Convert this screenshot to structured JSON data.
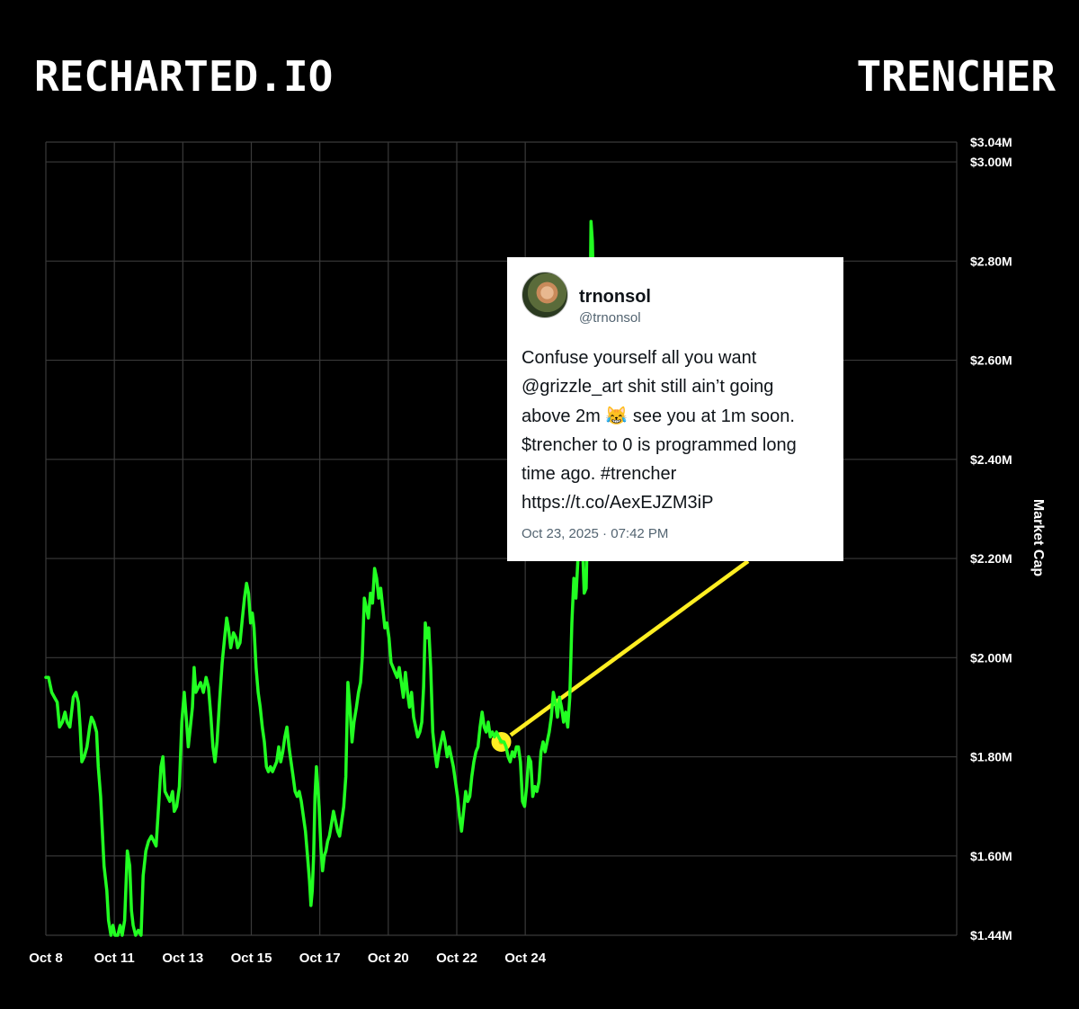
{
  "header": {
    "brand_left": "RECHARTED.IO",
    "brand_right": "TRENCHER"
  },
  "tweet": {
    "name": "trnonsol",
    "handle": "@trnonsol",
    "text": "Confuse yourself all you want @grizzle_art shit still ain’t going above 2m 😹 see you at 1m soon. $trencher to 0 is programmed long time ago. #trencher https://t.co/AexEJZM3iP",
    "timestamp": "Oct 23, 2025 · 07:42 PM",
    "avatar_icon": "avatar-icon"
  },
  "colors": {
    "background": "#000000",
    "line": "#22ff22",
    "grid": "#3a3a3a",
    "annotation": "#ffee22"
  },
  "chart_data": {
    "type": "line",
    "ylabel": "Market Cap",
    "ylim": [
      1.44,
      3.04
    ],
    "xlim": [
      0,
      26.6
    ],
    "grid": true,
    "y_ticks": [
      {
        "value": 3.04,
        "label": "$3.04M"
      },
      {
        "value": 3.0,
        "label": "$3.00M"
      },
      {
        "value": 2.8,
        "label": "$2.80M"
      },
      {
        "value": 2.6,
        "label": "$2.60M"
      },
      {
        "value": 2.4,
        "label": "$2.40M"
      },
      {
        "value": 2.2,
        "label": "$2.20M"
      },
      {
        "value": 2.0,
        "label": "$2.00M"
      },
      {
        "value": 1.8,
        "label": "$1.80M"
      },
      {
        "value": 1.6,
        "label": "$1.60M"
      },
      {
        "value": 1.44,
        "label": "$1.44M"
      }
    ],
    "x_ticks": [
      {
        "value": 0,
        "label": "Oct 8"
      },
      {
        "value": 2,
        "label": "Oct 11"
      },
      {
        "value": 4,
        "label": "Oct 13"
      },
      {
        "value": 6,
        "label": "Oct 15"
      },
      {
        "value": 8,
        "label": "Oct 17"
      },
      {
        "value": 10,
        "label": "Oct 20"
      },
      {
        "value": 12,
        "label": "Oct 22"
      },
      {
        "value": 14,
        "label": "Oct 24"
      }
    ],
    "annotation": {
      "x": 13.3,
      "y": 1.83,
      "label": "tweet"
    },
    "series": [
      {
        "points": [
          [
            0.0,
            1.96
          ],
          [
            0.08,
            1.96
          ],
          [
            0.17,
            1.93
          ],
          [
            0.25,
            1.92
          ],
          [
            0.33,
            1.91
          ],
          [
            0.4,
            1.86
          ],
          [
            0.48,
            1.87
          ],
          [
            0.56,
            1.89
          ],
          [
            0.62,
            1.87
          ],
          [
            0.7,
            1.86
          ],
          [
            0.8,
            1.92
          ],
          [
            0.88,
            1.93
          ],
          [
            0.95,
            1.91
          ],
          [
            1.0,
            1.86
          ],
          [
            1.05,
            1.79
          ],
          [
            1.12,
            1.8
          ],
          [
            1.2,
            1.82
          ],
          [
            1.28,
            1.86
          ],
          [
            1.33,
            1.88
          ],
          [
            1.4,
            1.87
          ],
          [
            1.48,
            1.85
          ],
          [
            1.53,
            1.78
          ],
          [
            1.6,
            1.72
          ],
          [
            1.65,
            1.65
          ],
          [
            1.7,
            1.58
          ],
          [
            1.78,
            1.53
          ],
          [
            1.83,
            1.47
          ],
          [
            1.9,
            1.44
          ],
          [
            1.96,
            1.46
          ],
          [
            2.02,
            1.44
          ],
          [
            2.1,
            1.44
          ],
          [
            2.17,
            1.46
          ],
          [
            2.23,
            1.44
          ],
          [
            2.3,
            1.47
          ],
          [
            2.38,
            1.61
          ],
          [
            2.45,
            1.58
          ],
          [
            2.5,
            1.49
          ],
          [
            2.55,
            1.46
          ],
          [
            2.62,
            1.44
          ],
          [
            2.7,
            1.45
          ],
          [
            2.78,
            1.44
          ],
          [
            2.84,
            1.56
          ],
          [
            2.92,
            1.61
          ],
          [
            3.0,
            1.63
          ],
          [
            3.08,
            1.64
          ],
          [
            3.15,
            1.63
          ],
          [
            3.22,
            1.62
          ],
          [
            3.3,
            1.71
          ],
          [
            3.36,
            1.78
          ],
          [
            3.42,
            1.8
          ],
          [
            3.48,
            1.73
          ],
          [
            3.55,
            1.72
          ],
          [
            3.62,
            1.71
          ],
          [
            3.7,
            1.73
          ],
          [
            3.75,
            1.69
          ],
          [
            3.82,
            1.7
          ],
          [
            3.9,
            1.74
          ],
          [
            3.97,
            1.87
          ],
          [
            4.04,
            1.93
          ],
          [
            4.1,
            1.88
          ],
          [
            4.16,
            1.82
          ],
          [
            4.22,
            1.86
          ],
          [
            4.28,
            1.9
          ],
          [
            4.33,
            1.98
          ],
          [
            4.38,
            1.93
          ],
          [
            4.45,
            1.94
          ],
          [
            4.52,
            1.95
          ],
          [
            4.6,
            1.93
          ],
          [
            4.68,
            1.96
          ],
          [
            4.75,
            1.94
          ],
          [
            4.82,
            1.88
          ],
          [
            4.88,
            1.82
          ],
          [
            4.94,
            1.79
          ],
          [
            5.0,
            1.83
          ],
          [
            5.07,
            1.91
          ],
          [
            5.15,
            1.99
          ],
          [
            5.22,
            2.04
          ],
          [
            5.28,
            2.08
          ],
          [
            5.33,
            2.06
          ],
          [
            5.4,
            2.02
          ],
          [
            5.48,
            2.05
          ],
          [
            5.55,
            2.04
          ],
          [
            5.6,
            2.02
          ],
          [
            5.67,
            2.03
          ],
          [
            5.74,
            2.08
          ],
          [
            5.8,
            2.12
          ],
          [
            5.86,
            2.15
          ],
          [
            5.92,
            2.13
          ],
          [
            5.98,
            2.07
          ],
          [
            6.03,
            2.09
          ],
          [
            6.08,
            2.06
          ],
          [
            6.14,
            1.98
          ],
          [
            6.2,
            1.93
          ],
          [
            6.26,
            1.9
          ],
          [
            6.32,
            1.86
          ],
          [
            6.38,
            1.83
          ],
          [
            6.44,
            1.78
          ],
          [
            6.5,
            1.77
          ],
          [
            6.56,
            1.78
          ],
          [
            6.62,
            1.77
          ],
          [
            6.68,
            1.78
          ],
          [
            6.74,
            1.79
          ],
          [
            6.8,
            1.82
          ],
          [
            6.86,
            1.79
          ],
          [
            6.92,
            1.81
          ],
          [
            6.98,
            1.84
          ],
          [
            7.04,
            1.86
          ],
          [
            7.1,
            1.82
          ],
          [
            7.16,
            1.79
          ],
          [
            7.22,
            1.76
          ],
          [
            7.28,
            1.73
          ],
          [
            7.34,
            1.72
          ],
          [
            7.4,
            1.73
          ],
          [
            7.46,
            1.71
          ],
          [
            7.52,
            1.68
          ],
          [
            7.58,
            1.65
          ],
          [
            7.64,
            1.6
          ],
          [
            7.7,
            1.55
          ],
          [
            7.74,
            1.5
          ],
          [
            7.78,
            1.53
          ],
          [
            7.82,
            1.6
          ],
          [
            7.86,
            1.72
          ],
          [
            7.9,
            1.78
          ],
          [
            7.94,
            1.74
          ],
          [
            7.98,
            1.7
          ],
          [
            8.03,
            1.62
          ],
          [
            8.08,
            1.57
          ],
          [
            8.13,
            1.6
          ],
          [
            8.18,
            1.61
          ],
          [
            8.23,
            1.63
          ],
          [
            8.28,
            1.64
          ],
          [
            8.33,
            1.66
          ],
          [
            8.4,
            1.69
          ],
          [
            8.46,
            1.67
          ],
          [
            8.52,
            1.65
          ],
          [
            8.58,
            1.64
          ],
          [
            8.64,
            1.67
          ],
          [
            8.7,
            1.7
          ],
          [
            8.76,
            1.76
          ],
          [
            8.82,
            1.95
          ],
          [
            8.88,
            1.9
          ],
          [
            8.94,
            1.83
          ],
          [
            9.0,
            1.87
          ],
          [
            9.07,
            1.9
          ],
          [
            9.13,
            1.93
          ],
          [
            9.19,
            1.95
          ],
          [
            9.24,
            2.0
          ],
          [
            9.3,
            2.12
          ],
          [
            9.36,
            2.1
          ],
          [
            9.42,
            2.08
          ],
          [
            9.48,
            2.13
          ],
          [
            9.54,
            2.11
          ],
          [
            9.6,
            2.18
          ],
          [
            9.66,
            2.16
          ],
          [
            9.72,
            2.12
          ],
          [
            9.78,
            2.14
          ],
          [
            9.84,
            2.1
          ],
          [
            9.9,
            2.06
          ],
          [
            9.96,
            2.07
          ],
          [
            10.02,
            2.04
          ],
          [
            10.08,
            1.99
          ],
          [
            10.14,
            1.98
          ],
          [
            10.2,
            1.97
          ],
          [
            10.26,
            1.96
          ],
          [
            10.32,
            1.98
          ],
          [
            10.38,
            1.95
          ],
          [
            10.44,
            1.92
          ],
          [
            10.5,
            1.97
          ],
          [
            10.56,
            1.93
          ],
          [
            10.62,
            1.9
          ],
          [
            10.68,
            1.93
          ],
          [
            10.74,
            1.88
          ],
          [
            10.8,
            1.86
          ],
          [
            10.86,
            1.84
          ],
          [
            10.92,
            1.85
          ],
          [
            10.98,
            1.87
          ],
          [
            11.03,
            1.94
          ],
          [
            11.08,
            2.07
          ],
          [
            11.13,
            2.04
          ],
          [
            11.18,
            2.06
          ],
          [
            11.24,
            1.98
          ],
          [
            11.3,
            1.85
          ],
          [
            11.36,
            1.81
          ],
          [
            11.42,
            1.78
          ],
          [
            11.48,
            1.81
          ],
          [
            11.54,
            1.83
          ],
          [
            11.6,
            1.85
          ],
          [
            11.66,
            1.83
          ],
          [
            11.72,
            1.8
          ],
          [
            11.78,
            1.82
          ],
          [
            11.84,
            1.8
          ],
          [
            11.9,
            1.78
          ],
          [
            11.96,
            1.75
          ],
          [
            12.02,
            1.72
          ],
          [
            12.08,
            1.68
          ],
          [
            12.14,
            1.65
          ],
          [
            12.2,
            1.69
          ],
          [
            12.26,
            1.73
          ],
          [
            12.32,
            1.71
          ],
          [
            12.38,
            1.72
          ],
          [
            12.44,
            1.76
          ],
          [
            12.5,
            1.79
          ],
          [
            12.56,
            1.81
          ],
          [
            12.62,
            1.82
          ],
          [
            12.68,
            1.86
          ],
          [
            12.74,
            1.89
          ],
          [
            12.8,
            1.86
          ],
          [
            12.86,
            1.85
          ],
          [
            12.92,
            1.87
          ],
          [
            12.98,
            1.84
          ],
          [
            13.04,
            1.85
          ],
          [
            13.1,
            1.84
          ],
          [
            13.16,
            1.85
          ],
          [
            13.22,
            1.84
          ],
          [
            13.3,
            1.83
          ],
          [
            13.38,
            1.83
          ],
          [
            13.44,
            1.82
          ],
          [
            13.5,
            1.8
          ],
          [
            13.56,
            1.79
          ],
          [
            13.62,
            1.81
          ],
          [
            13.68,
            1.8
          ],
          [
            13.74,
            1.82
          ],
          [
            13.8,
            1.82
          ],
          [
            13.86,
            1.79
          ],
          [
            13.92,
            1.71
          ],
          [
            13.98,
            1.7
          ],
          [
            14.04,
            1.74
          ],
          [
            14.1,
            1.8
          ],
          [
            14.16,
            1.79
          ],
          [
            14.22,
            1.72
          ],
          [
            14.28,
            1.74
          ],
          [
            14.34,
            1.73
          ],
          [
            14.4,
            1.75
          ],
          [
            14.46,
            1.81
          ],
          [
            14.52,
            1.83
          ],
          [
            14.58,
            1.81
          ],
          [
            14.64,
            1.83
          ],
          [
            14.7,
            1.85
          ],
          [
            14.76,
            1.88
          ],
          [
            14.82,
            1.93
          ],
          [
            14.88,
            1.91
          ],
          [
            14.94,
            1.88
          ],
          [
            15.0,
            1.92
          ],
          [
            15.06,
            1.9
          ],
          [
            15.12,
            1.87
          ],
          [
            15.18,
            1.89
          ],
          [
            15.24,
            1.86
          ],
          [
            15.3,
            1.92
          ],
          [
            15.36,
            2.07
          ],
          [
            15.42,
            2.16
          ],
          [
            15.48,
            2.12
          ],
          [
            15.54,
            2.2
          ],
          [
            15.6,
            2.3
          ],
          [
            15.66,
            2.25
          ],
          [
            15.72,
            2.13
          ],
          [
            15.78,
            2.14
          ],
          [
            15.84,
            2.35
          ],
          [
            15.88,
            2.62
          ],
          [
            15.92,
            2.88
          ],
          [
            15.96,
            2.84
          ],
          [
            16.0,
            2.72
          ],
          [
            16.04,
            2.67
          ],
          [
            16.08,
            2.6
          ],
          [
            16.12,
            2.64
          ],
          [
            16.16,
            2.6
          ]
        ]
      }
    ]
  }
}
